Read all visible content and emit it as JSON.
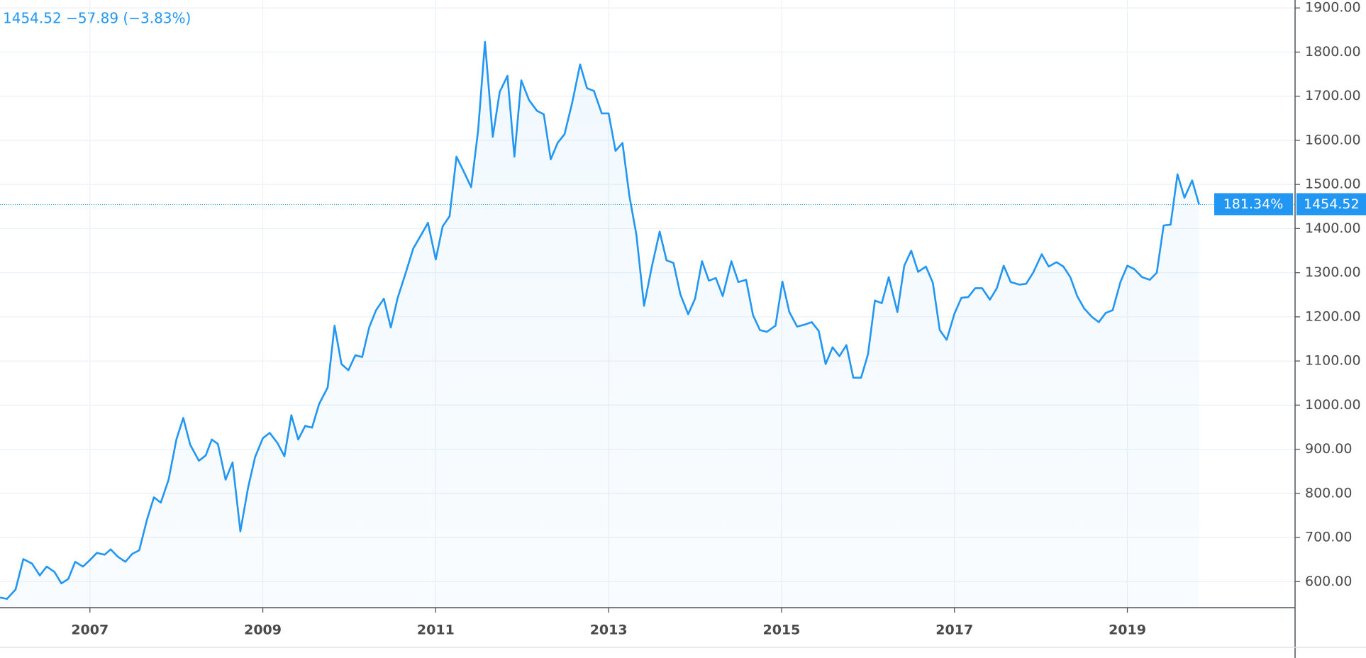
{
  "chart_data": {
    "type": "line",
    "title": "1454.52 −57.89 (−3.83%)",
    "percent_tag": "181.34%",
    "price_tag": "1454.52",
    "color": "#2196f3",
    "grid": true,
    "xlim": [
      2005.96,
      2020.94
    ],
    "ylim": [
      541,
      1918
    ],
    "xticks": [
      2007,
      2009,
      2011,
      2013,
      2015,
      2017,
      2019
    ],
    "yticks": [
      {
        "value": 600,
        "label": "600.00"
      },
      {
        "value": 700,
        "label": "700.00"
      },
      {
        "value": 800,
        "label": "800.00"
      },
      {
        "value": 900,
        "label": "900.00"
      },
      {
        "value": 1000,
        "label": "1000.00"
      },
      {
        "value": 1100,
        "label": "1100.00"
      },
      {
        "value": 1200,
        "label": "1200.00"
      },
      {
        "value": 1300,
        "label": "1300.00"
      },
      {
        "value": 1400,
        "label": "1400.00"
      },
      {
        "value": 1500,
        "label": "1500.00"
      },
      {
        "value": 1600,
        "label": "1600.00"
      },
      {
        "value": 1700,
        "label": "1700.00"
      },
      {
        "value": 1800,
        "label": "1800.00"
      },
      {
        "value": 1900,
        "label": "1900.00"
      }
    ],
    "x": [
      2005.96,
      2006.04,
      2006.14,
      2006.23,
      2006.33,
      2006.42,
      2006.5,
      2006.59,
      2006.67,
      2006.75,
      2006.83,
      2006.92,
      2007.0,
      2007.08,
      2007.17,
      2007.24,
      2007.32,
      2007.41,
      2007.49,
      2007.57,
      2007.66,
      2007.74,
      2007.82,
      2007.91,
      2008.0,
      2008.08,
      2008.16,
      2008.26,
      2008.34,
      2008.41,
      2008.48,
      2008.57,
      2008.65,
      2008.74,
      2008.83,
      2008.91,
      2009.0,
      2009.08,
      2009.17,
      2009.25,
      2009.33,
      2009.41,
      2009.49,
      2009.57,
      2009.65,
      2009.75,
      2009.83,
      2009.91,
      2009.99,
      2010.07,
      2010.15,
      2010.23,
      2010.31,
      2010.4,
      2010.48,
      2010.56,
      2010.65,
      2010.74,
      2010.83,
      2010.91,
      2011.0,
      2011.08,
      2011.16,
      2011.24,
      2011.32,
      2011.41,
      2011.49,
      2011.57,
      2011.66,
      2011.74,
      2011.83,
      2011.91,
      2011.99,
      2012.08,
      2012.17,
      2012.25,
      2012.33,
      2012.41,
      2012.49,
      2012.58,
      2012.67,
      2012.75,
      2012.83,
      2012.92,
      2013.0,
      2013.08,
      2013.16,
      2013.24,
      2013.32,
      2013.41,
      2013.5,
      2013.59,
      2013.67,
      2013.75,
      2013.83,
      2013.92,
      2014.0,
      2014.08,
      2014.16,
      2014.24,
      2014.32,
      2014.42,
      2014.5,
      2014.59,
      2014.67,
      2014.75,
      2014.83,
      2014.93,
      2015.01,
      2015.09,
      2015.18,
      2015.26,
      2015.35,
      2015.43,
      2015.51,
      2015.59,
      2015.67,
      2015.75,
      2015.83,
      2015.92,
      2016.0,
      2016.08,
      2016.16,
      2016.24,
      2016.34,
      2016.42,
      2016.5,
      2016.58,
      2016.67,
      2016.75,
      2016.83,
      2016.91,
      2017.0,
      2017.08,
      2017.16,
      2017.24,
      2017.32,
      2017.41,
      2017.49,
      2017.57,
      2017.65,
      2017.75,
      2017.83,
      2017.91,
      2018.01,
      2018.09,
      2018.18,
      2018.26,
      2018.34,
      2018.42,
      2018.5,
      2018.59,
      2018.67,
      2018.75,
      2018.83,
      2018.92,
      2019.0,
      2019.08,
      2019.17,
      2019.26,
      2019.34,
      2019.42,
      2019.5,
      2019.58,
      2019.66,
      2019.75,
      2019.83
    ],
    "values": [
      564,
      561,
      582,
      651,
      641,
      614,
      634,
      622,
      596,
      606,
      645,
      634,
      649,
      665,
      661,
      673,
      657,
      645,
      663,
      671,
      740,
      791,
      779,
      831,
      922,
      971,
      910,
      874,
      886,
      922,
      912,
      831,
      870,
      714,
      813,
      882,
      925,
      937,
      914,
      884,
      977,
      922,
      953,
      949,
      1002,
      1040,
      1180,
      1093,
      1079,
      1113,
      1109,
      1176,
      1215,
      1241,
      1176,
      1243,
      1298,
      1355,
      1385,
      1413,
      1330,
      1405,
      1428,
      1563,
      1531,
      1494,
      1622,
      1823,
      1608,
      1710,
      1746,
      1563,
      1736,
      1691,
      1667,
      1659,
      1557,
      1594,
      1614,
      1687,
      1772,
      1718,
      1712,
      1661,
      1661,
      1576,
      1594,
      1474,
      1387,
      1225,
      1314,
      1393,
      1328,
      1322,
      1251,
      1206,
      1241,
      1326,
      1282,
      1288,
      1247,
      1326,
      1279,
      1284,
      1204,
      1170,
      1166,
      1180,
      1280,
      1211,
      1178,
      1182,
      1188,
      1168,
      1093,
      1131,
      1111,
      1136,
      1062,
      1062,
      1115,
      1237,
      1231,
      1290,
      1211,
      1316,
      1350,
      1302,
      1314,
      1277,
      1170,
      1148,
      1207,
      1243,
      1245,
      1265,
      1265,
      1239,
      1265,
      1316,
      1279,
      1273,
      1275,
      1300,
      1342,
      1314,
      1324,
      1314,
      1290,
      1247,
      1219,
      1200,
      1188,
      1209,
      1215,
      1279,
      1316,
      1308,
      1290,
      1284,
      1300,
      1407,
      1409,
      1523,
      1470,
      1509,
      1454.52
    ]
  }
}
